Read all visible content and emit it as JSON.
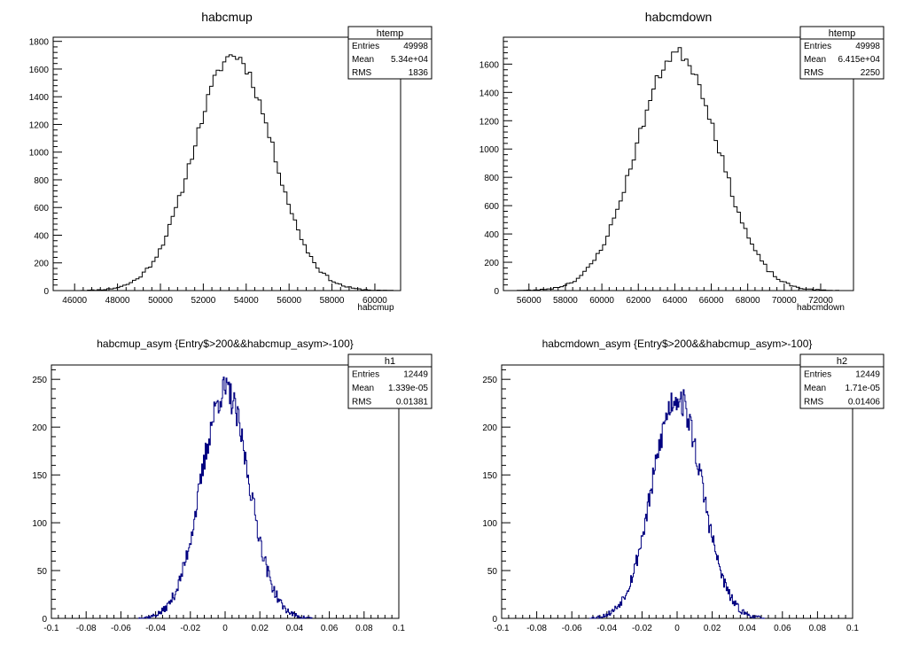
{
  "chart_data": [
    {
      "type": "histogram",
      "title": "habcmup",
      "xlabel": "habcmup",
      "ylabel": "",
      "xlim": [
        45000,
        61200
      ],
      "ylim": [
        0,
        1830
      ],
      "x_ticks": [
        46000,
        48000,
        50000,
        52000,
        54000,
        56000,
        58000,
        60000
      ],
      "x_tick_labels": [
        "46000",
        "48000",
        "50000",
        "52000",
        "54000",
        "56000",
        "58000",
        "60000"
      ],
      "y_ticks": [
        0,
        200,
        400,
        600,
        800,
        1000,
        1200,
        1400,
        1600,
        1800
      ],
      "y_tick_labels": [
        "0",
        "200",
        "400",
        "600",
        "800",
        "1000",
        "1200",
        "1400",
        "1600",
        "1800"
      ],
      "shape": {
        "mean": 53400,
        "sigma": 1836,
        "peak": 1700,
        "bins": 100,
        "x_start": 46000,
        "x_end": 61000
      },
      "stats": {
        "name": "htemp",
        "rows": [
          [
            "Entries",
            "49998"
          ],
          [
            "Mean",
            "5.34e+04"
          ],
          [
            "RMS",
            "1836"
          ]
        ]
      }
    },
    {
      "type": "histogram",
      "title": "habcmdown",
      "xlabel": "habcmdown",
      "ylabel": "",
      "xlim": [
        54600,
        73800
      ],
      "ylim": [
        0,
        1790
      ],
      "x_ticks": [
        56000,
        58000,
        60000,
        62000,
        64000,
        66000,
        68000,
        70000,
        72000
      ],
      "x_tick_labels": [
        "56000",
        "58000",
        "60000",
        "62000",
        "64000",
        "66000",
        "68000",
        "70000",
        "72000"
      ],
      "y_ticks": [
        0,
        200,
        400,
        600,
        800,
        1000,
        1200,
        1400,
        1600
      ],
      "y_tick_labels": [
        "0",
        "200",
        "400",
        "600",
        "800",
        "1000",
        "1200",
        "1400",
        "1600"
      ],
      "shape": {
        "mean": 64150,
        "sigma": 2250,
        "peak": 1680,
        "bins": 100,
        "x_start": 55000,
        "x_end": 73000
      },
      "stats": {
        "name": "htemp",
        "rows": [
          [
            "Entries",
            "49998"
          ],
          [
            "Mean",
            "6.415e+04"
          ],
          [
            "RMS",
            "2250"
          ]
        ]
      }
    },
    {
      "type": "histogram",
      "title": "habcmup_asym {Entry$>200&&habcmup_asym>-100}",
      "xlabel": "",
      "ylabel": "",
      "xlim": [
        -0.1,
        0.1
      ],
      "ylim": [
        0,
        265
      ],
      "x_ticks": [
        -0.1,
        -0.08,
        -0.06,
        -0.04,
        -0.02,
        0,
        0.02,
        0.04,
        0.06,
        0.08,
        0.1
      ],
      "x_tick_labels": [
        "-0.1",
        "-0.08",
        "-0.06",
        "-0.04",
        "-0.02",
        "0",
        "0.02",
        "0.04",
        "0.06",
        "0.08",
        "0.1"
      ],
      "y_ticks": [
        0,
        50,
        100,
        150,
        200,
        250
      ],
      "y_tick_labels": [
        "0",
        "50",
        "100",
        "150",
        "200",
        "250"
      ],
      "shape": {
        "mean": 0.0,
        "sigma": 0.0138,
        "peak": 238,
        "bins": 200,
        "x_start": -0.05,
        "x_end": 0.05
      },
      "stats": {
        "name": "h1",
        "rows": [
          [
            "Entries",
            "12449"
          ],
          [
            "Mean",
            "1.339e-05"
          ],
          [
            "RMS",
            "0.01381"
          ]
        ]
      }
    },
    {
      "type": "histogram",
      "title": "habcmdown_asym {Entry$>200&&habcmup_asym>-100}",
      "xlabel": "",
      "ylabel": "",
      "xlim": [
        -0.1,
        0.1
      ],
      "ylim": [
        0,
        265
      ],
      "x_ticks": [
        -0.1,
        -0.08,
        -0.06,
        -0.04,
        -0.02,
        0,
        0.02,
        0.04,
        0.06,
        0.08,
        0.1
      ],
      "x_tick_labels": [
        "-0.1",
        "-0.08",
        "-0.06",
        "-0.04",
        "-0.02",
        "0",
        "0.02",
        "0.04",
        "0.06",
        "0.08",
        "0.1"
      ],
      "y_ticks": [
        0,
        50,
        100,
        150,
        200,
        250
      ],
      "y_tick_labels": [
        "0",
        "50",
        "100",
        "150",
        "200",
        "250"
      ],
      "shape": {
        "mean": 0.0,
        "sigma": 0.0141,
        "peak": 232,
        "bins": 200,
        "x_start": -0.05,
        "x_end": 0.05
      },
      "stats": {
        "name": "h2",
        "rows": [
          [
            "Entries",
            "12449"
          ],
          [
            "Mean",
            "1.71e-05"
          ],
          [
            "RMS",
            "0.01406"
          ]
        ]
      }
    }
  ],
  "colors": {
    "line_top": "#000000",
    "line_bottom": "#000080",
    "frame": "#000000",
    "background": "#ffffff"
  }
}
